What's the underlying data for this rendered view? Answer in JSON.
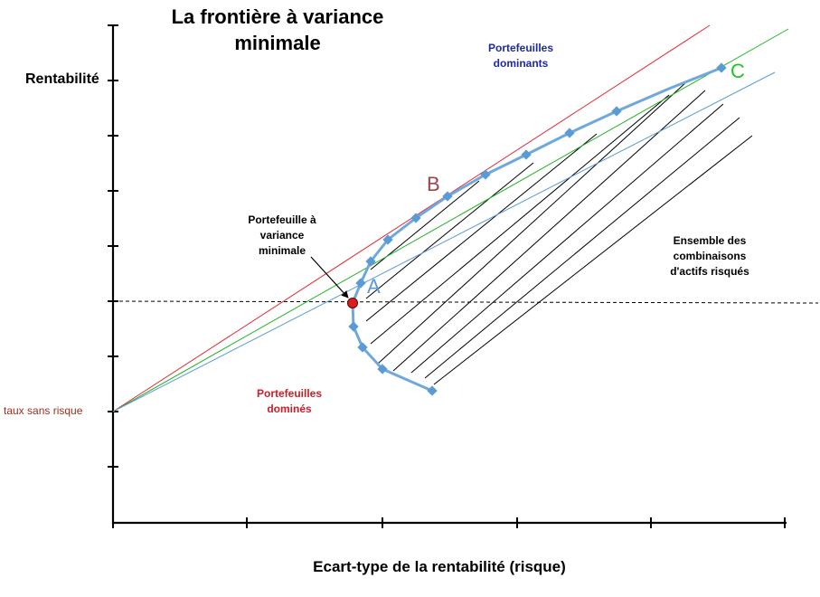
{
  "title": {
    "line1": "La frontière à variance",
    "line2": "minimale"
  },
  "axes": {
    "ylabel": "Rentabilité",
    "xlabel": "Ecart-type de la rentabilité (risque)"
  },
  "labels": {
    "risk_free": "taux sans risque",
    "dominant": {
      "line1": "Portefeuilles",
      "line2": "dominants"
    },
    "dominated": {
      "line1": "Portefeuilles",
      "line2": "dominés"
    },
    "set": {
      "line1": "Ensemble des",
      "line2": "combinaisons",
      "line3": "d'actifs risqués"
    },
    "min_variance": {
      "line1": "Portefeuille à",
      "line2": "variance",
      "line3": "minimale"
    }
  },
  "points": {
    "A": "A",
    "B": "B",
    "C": "C"
  },
  "colors": {
    "frontier": "#6fa8dc",
    "frontier_marker": "#5b9bd5",
    "tangent_red": "#e0283a",
    "tangent_green": "#22b422",
    "line_blue": "#5b9bd5",
    "dominant_text": "#1f2a9e",
    "dominated_text": "#c8202a",
    "risk_free_text": "#9b3020",
    "point_A": "#5b9bd5",
    "point_B": "#a0434a",
    "point_C": "#22c422",
    "min_variance_dot": "#dd1c1c"
  }
}
